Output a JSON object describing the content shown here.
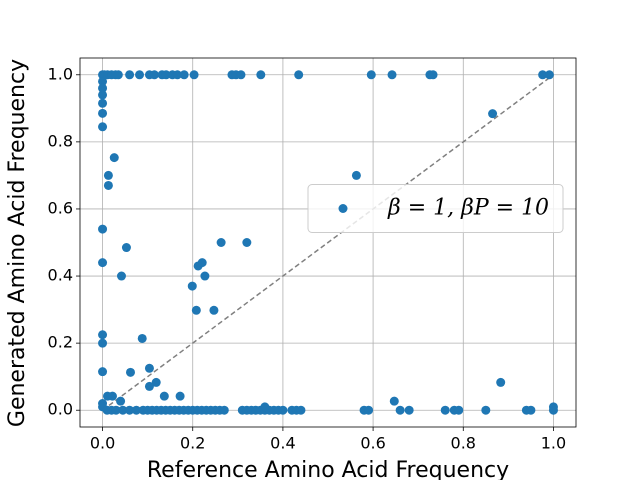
{
  "chart_data": {
    "type": "scatter",
    "xlabel": "Reference Amino Acid Frequency",
    "ylabel": "Generated Amino Acid Frequency",
    "xlim": [
      -0.05,
      1.05
    ],
    "ylim": [
      -0.05,
      1.05
    ],
    "xticks": [
      {
        "value": 0,
        "label": "0.0"
      },
      0.2,
      0.4,
      0.6,
      0.8,
      {
        "value": 1,
        "label": "1.0"
      }
    ],
    "yticks": [
      {
        "value": 0,
        "label": "0.0"
      },
      0.2,
      0.4,
      0.6,
      0.8,
      {
        "value": 1,
        "label": "1.0"
      }
    ],
    "grid": true,
    "legend": "center right",
    "diagonal": {
      "x": [
        0,
        1
      ],
      "y": [
        0,
        1
      ],
      "color": "#808080"
    },
    "series": [
      {
        "name": "β = 1, βP = 10",
        "color": "#1f77b4",
        "x": [
          0,
          0.004,
          0.011,
          0.02,
          0.029,
          0.035,
          0.06,
          0.082,
          0.104,
          0.115,
          0.132,
          0.141,
          0.155,
          0.166,
          0.181,
          0.203,
          0.287,
          0.296,
          0.307,
          0.351,
          0.435,
          0.596,
          0.642,
          0.726,
          0.733,
          0.976,
          0.991,
          0,
          0,
          0,
          0,
          0,
          0,
          0,
          0,
          0.0,
          0,
          0,
          0,
          0,
          0.026,
          0.013,
          0.013,
          0.053,
          0.042,
          0.088,
          0.104,
          0.062,
          0.119,
          0.104,
          0.137,
          0.172,
          0.199,
          0.208,
          0.212,
          0.221,
          0.227,
          0.247,
          0.263,
          0.32,
          0.563,
          0.865,
          0.883,
          0.647,
          0.011,
          0.022,
          0.04,
          0.01,
          0.02,
          0.03,
          0.045,
          0.06,
          0.075,
          0.09,
          0.1,
          0.11,
          0.12,
          0.13,
          0.14,
          0.15,
          0.16,
          0.17,
          0.18,
          0.19,
          0.2,
          0.21,
          0.22,
          0.23,
          0.24,
          0.25,
          0.26,
          0.27,
          0.31,
          0.32,
          0.33,
          0.34,
          0.35,
          0.36,
          0.37,
          0.38,
          0.39,
          0.4,
          0.42,
          0.43,
          0.44,
          0.58,
          0.59,
          0.66,
          0.68,
          0.76,
          0.78,
          0.79,
          0.85,
          0.94,
          0.95,
          1.0,
          0.36,
          1.0
        ],
        "values": [
          1,
          1,
          1,
          1,
          1,
          1,
          1,
          1,
          1,
          1,
          1,
          1,
          1,
          1,
          1,
          1,
          1,
          1,
          1,
          1,
          1,
          1,
          1,
          1,
          1,
          1,
          1,
          0.98,
          0.96,
          0.94,
          0.915,
          0.885,
          0.845,
          0.54,
          0.44,
          0.225,
          0.2,
          0.115,
          0.02,
          0.01,
          0.753,
          0.7,
          0.67,
          0.485,
          0.4,
          0.214,
          0.125,
          0.113,
          0.083,
          0.071,
          0.042,
          0.042,
          0.37,
          0.298,
          0.43,
          0.44,
          0.4,
          0.298,
          0.5,
          0.5,
          0.7,
          0.884,
          0.083,
          0.027,
          0.042,
          0.042,
          0.027,
          0,
          0,
          0,
          0,
          0,
          0,
          0,
          0,
          0,
          0,
          0,
          0,
          0,
          0,
          0,
          0,
          0,
          0,
          0,
          0,
          0,
          0,
          0,
          0,
          0,
          0,
          0,
          0,
          0,
          0,
          0,
          0,
          0,
          0,
          0,
          0,
          0,
          0,
          0,
          0,
          0,
          0,
          0,
          0,
          0,
          0,
          0,
          0,
          0,
          0.01,
          0.01
        ]
      }
    ]
  }
}
